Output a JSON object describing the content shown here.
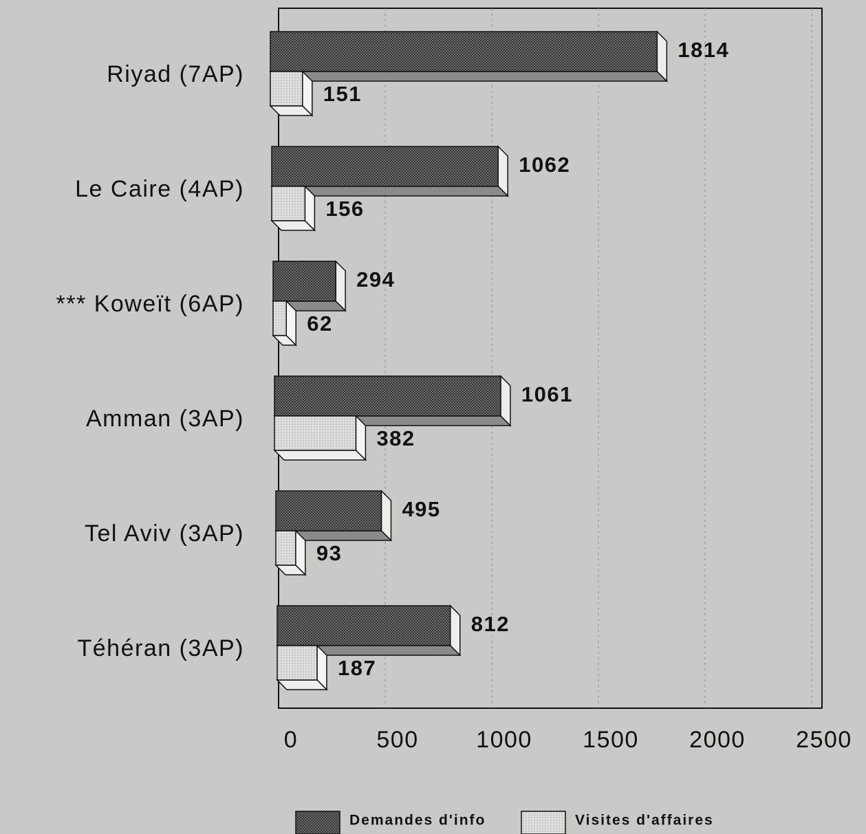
{
  "chart_data": {
    "type": "bar",
    "orientation": "horizontal",
    "categories": [
      "Riyad (7AP)",
      "Le Caire (4AP)",
      "*** Koweït (6AP)",
      "Amman (3AP)",
      "Tel Aviv (3AP)",
      "Téhéran (3AP)"
    ],
    "series": [
      {
        "name": "Demandes d'info",
        "color": "#5a5a5a",
        "values": [
          1814,
          1062,
          294,
          1061,
          495,
          812
        ]
      },
      {
        "name": "Visites d'affaires",
        "color": "#d9d9d7",
        "values": [
          151,
          156,
          62,
          382,
          93,
          187
        ]
      }
    ],
    "xlim": [
      0,
      2500
    ],
    "xticks": [
      0,
      500,
      1000,
      1500,
      2000,
      2500
    ],
    "grid": true,
    "legend": "bottom"
  }
}
